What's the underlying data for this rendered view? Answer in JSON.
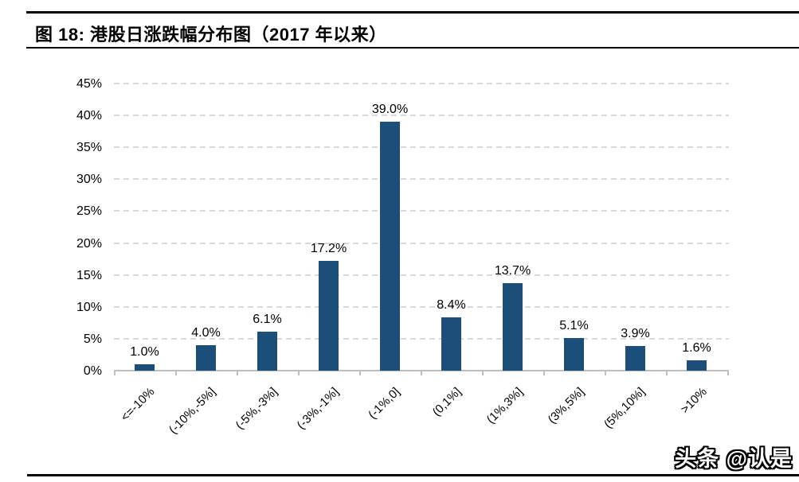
{
  "header": {
    "title": "图 18:  港股日涨跌幅分布图（2017 年以来）"
  },
  "watermark": {
    "text": "头条 @认是"
  },
  "colors": {
    "bar": "#1b4e79",
    "gridline": "#d9d9d9",
    "axis": "#bfbfbf",
    "text": "#000000",
    "rule": "#000000",
    "background": "#ffffff"
  },
  "chart_data": {
    "type": "bar",
    "title": "港股日涨跌幅分布图（2017 年以来）",
    "categories": [
      "<=-10%",
      "(-10%,-5%]",
      "(-5%,-3%]",
      "(-3%,-1%]",
      "(-1%,0]",
      "(0,1%]",
      "(1%,3%]",
      "(3%,5%]",
      "(5%,10%]",
      ">10%"
    ],
    "values": [
      1.0,
      4.0,
      6.1,
      17.2,
      39.0,
      8.4,
      13.7,
      5.1,
      3.9,
      1.6
    ],
    "value_labels": [
      "1.0%",
      "4.0%",
      "6.1%",
      "17.2%",
      "39.0%",
      "8.4%",
      "13.7%",
      "5.1%",
      "3.9%",
      "1.6%"
    ],
    "y_tick_labels": [
      "0%",
      "5%",
      "10%",
      "15%",
      "20%",
      "25%",
      "30%",
      "35%",
      "40%",
      "45%"
    ],
    "y_tick_values": [
      0,
      5,
      10,
      15,
      20,
      25,
      30,
      35,
      40,
      45
    ],
    "ylim": [
      0,
      45
    ],
    "xlabel": "",
    "ylabel": "",
    "grid": "horizontal-dashed",
    "legend": "none"
  }
}
